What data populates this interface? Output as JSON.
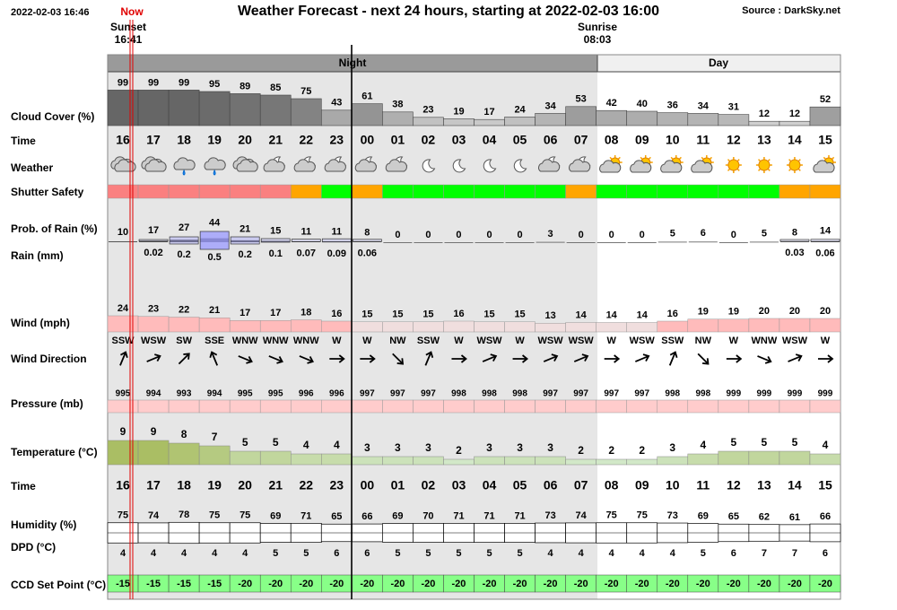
{
  "header": {
    "timestamp": "2022-02-03 16:46",
    "now": "Now",
    "title": "Weather Forecast - next 24 hours, starting at 2022-02-03 16:00",
    "source": "Source : DarkSky.net",
    "sunset_label": "Sunset",
    "sunset_time": "16:41",
    "sunrise_label": "Sunrise",
    "sunrise_time": "08:03",
    "night": "Night",
    "day": "Day"
  },
  "row_labels": {
    "cloud_cover": "Cloud Cover (%)",
    "time": "Time",
    "weather": "Weather",
    "shutter": "Shutter Safety",
    "prob_rain": "Prob. of Rain (%)",
    "rain": "Rain (mm)",
    "wind": "Wind (mph)",
    "wind_dir": "Wind Direction",
    "pressure": "Pressure (mb)",
    "temperature": "Temperature (°C)",
    "time2": "Time",
    "humidity": "Humidity (%)",
    "dpd": "DPD (°C)",
    "ccd": "CCD Set Point (°C)"
  },
  "hours": [
    "16",
    "17",
    "18",
    "19",
    "20",
    "21",
    "22",
    "23",
    "00",
    "01",
    "02",
    "03",
    "04",
    "05",
    "06",
    "07",
    "08",
    "09",
    "10",
    "11",
    "12",
    "13",
    "14",
    "15"
  ],
  "cloud_cover": [
    99,
    99,
    99,
    95,
    89,
    85,
    75,
    43,
    61,
    38,
    23,
    19,
    17,
    24,
    34,
    53,
    42,
    40,
    36,
    34,
    31,
    12,
    12,
    52
  ],
  "shutter_colors": [
    "#fa8080",
    "#fa8080",
    "#fa8080",
    "#fa8080",
    "#fa8080",
    "#fa8080",
    "#ffa500",
    "#00ff00",
    "#ffa500",
    "#00ff00",
    "#00ff00",
    "#00ff00",
    "#00ff00",
    "#00ff00",
    "#00ff00",
    "#ffa500",
    "#00ff00",
    "#00ff00",
    "#00ff00",
    "#00ff00",
    "#00ff00",
    "#00ff00",
    "#ffa500",
    "#ffa500"
  ],
  "prob_rain": [
    10,
    17,
    27,
    44,
    21,
    15,
    11,
    11,
    8,
    0,
    0,
    0,
    0,
    0,
    3,
    0,
    0,
    0,
    5,
    6,
    0,
    5,
    8,
    14
  ],
  "rain_mm": [
    null,
    0.02,
    0.2,
    0.5,
    0.2,
    0.1,
    0.07,
    0.09,
    0.06,
    null,
    null,
    null,
    null,
    null,
    null,
    null,
    null,
    null,
    null,
    null,
    null,
    null,
    0.03,
    0.06
  ],
  "wind": [
    24,
    23,
    22,
    21,
    17,
    17,
    18,
    16,
    15,
    15,
    15,
    16,
    15,
    15,
    13,
    14,
    14,
    14,
    16,
    19,
    19,
    20,
    20,
    20
  ],
  "wind_colors": [
    "#fbb",
    "#fbb",
    "#fbb",
    "#fbb",
    "#fbb",
    "#fbb",
    "#fbb",
    "#fbb",
    "#f0dede",
    "#f0dede",
    "#f0dede",
    "#f0dede",
    "#f0dede",
    "#f0dede",
    "#f0dede",
    "#f0dede",
    "#f0dede",
    "#f0dede",
    "#fbb",
    "#fbb",
    "#fbb",
    "#fbb",
    "#fbb",
    "#fbb"
  ],
  "wind_dir": [
    "SSW",
    "WSW",
    "SW",
    "SSE",
    "WNW",
    "WNW",
    "WNW",
    "W",
    "W",
    "NW",
    "SSW",
    "W",
    "WSW",
    "W",
    "WSW",
    "WSW",
    "W",
    "WSW",
    "SSW",
    "NW",
    "W",
    "WNW",
    "WSW",
    "W"
  ],
  "pressure": [
    995,
    994,
    993,
    994,
    995,
    995,
    996,
    996,
    997,
    997,
    997,
    998,
    998,
    998,
    997,
    997,
    997,
    997,
    998,
    998,
    999,
    999,
    999,
    999
  ],
  "temperature": [
    9,
    9,
    8,
    7,
    5,
    5,
    4,
    4,
    3,
    3,
    3,
    2,
    3,
    3,
    3,
    2,
    2,
    2,
    3,
    4,
    5,
    5,
    5,
    4
  ],
  "humidity": [
    75,
    74,
    78,
    75,
    75,
    69,
    71,
    65,
    66,
    69,
    70,
    71,
    71,
    71,
    73,
    74,
    75,
    75,
    73,
    69,
    65,
    62,
    61,
    66
  ],
  "dpd": [
    4,
    4,
    4,
    4,
    4,
    5,
    5,
    6,
    6,
    5,
    5,
    5,
    5,
    5,
    4,
    4,
    4,
    4,
    4,
    5,
    6,
    7,
    7,
    6
  ],
  "ccd": [
    -15,
    -15,
    -15,
    -15,
    -20,
    -20,
    -20,
    -20,
    -20,
    -20,
    -20,
    -20,
    -20,
    -20,
    -20,
    -20,
    -20,
    -20,
    -20,
    -20,
    -20,
    -20,
    -20,
    -20
  ]
}
